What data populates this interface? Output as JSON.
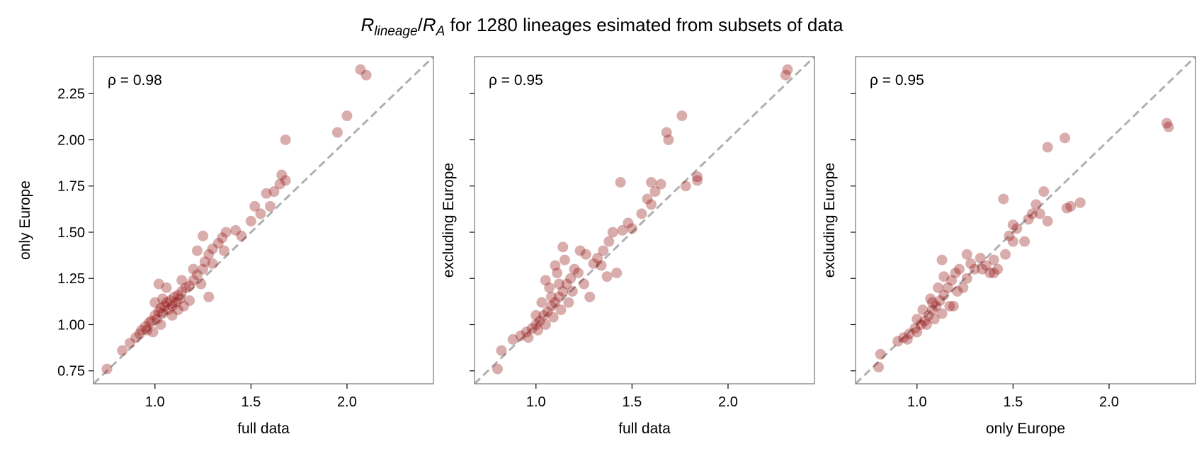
{
  "figure": {
    "title_R1": "R",
    "title_sub1": "lineage",
    "title_slash": "/",
    "title_R2": "R",
    "title_sub2": "A",
    "title_rest": " for 1280 lineages esimated from subsets of data"
  },
  "colors": {
    "point": "#8b0000",
    "diagonal": "#b0b0b0",
    "frame": "#7f7f7f"
  },
  "chart_data": [
    {
      "type": "scatter",
      "xlabel": "full data",
      "ylabel": "only Europe",
      "annotation": "ρ = 0.98",
      "xlim": [
        0.68,
        2.45
      ],
      "ylim": [
        0.68,
        2.45
      ],
      "xticks": [
        1.0,
        1.5,
        2.0
      ],
      "xtick_labels": [
        "1.0",
        "1.5",
        "2.0"
      ],
      "yticks": [
        0.75,
        1.0,
        1.25,
        1.5,
        1.75,
        2.0,
        2.25
      ],
      "ytick_labels": [
        "0.75",
        "1.00",
        "1.25",
        "1.50",
        "1.75",
        "2.00",
        "2.25"
      ],
      "diagonal": true,
      "points": [
        [
          0.75,
          0.76
        ],
        [
          0.83,
          0.86
        ],
        [
          0.87,
          0.9
        ],
        [
          0.9,
          0.93
        ],
        [
          0.93,
          0.97
        ],
        [
          0.95,
          0.99
        ],
        [
          0.97,
          1.01
        ],
        [
          0.98,
          1.02
        ],
        [
          1.0,
          1.05
        ],
        [
          1.02,
          1.07
        ],
        [
          1.03,
          1.09
        ],
        [
          1.05,
          1.1
        ],
        [
          1.06,
          1.12
        ],
        [
          1.08,
          1.13
        ],
        [
          1.1,
          1.15
        ],
        [
          1.12,
          1.16
        ],
        [
          1.14,
          1.18
        ],
        [
          1.16,
          1.2
        ],
        [
          1.18,
          1.21
        ],
        [
          1.2,
          1.24
        ],
        [
          1.22,
          1.27
        ],
        [
          1.25,
          1.3
        ],
        [
          1.26,
          1.34
        ],
        [
          1.28,
          1.38
        ],
        [
          1.3,
          1.41
        ],
        [
          1.33,
          1.44
        ],
        [
          1.35,
          1.47
        ],
        [
          1.37,
          1.5
        ],
        [
          1.25,
          1.48
        ],
        [
          1.28,
          1.15
        ],
        [
          1.42,
          1.51
        ],
        [
          1.5,
          1.56
        ],
        [
          1.55,
          1.6
        ],
        [
          1.58,
          1.71
        ],
        [
          1.6,
          1.64
        ],
        [
          1.62,
          1.72
        ],
        [
          1.65,
          1.76
        ],
        [
          1.66,
          1.81
        ],
        [
          1.68,
          1.78
        ],
        [
          1.68,
          2.0
        ],
        [
          1.95,
          2.04
        ],
        [
          2.0,
          2.13
        ],
        [
          2.07,
          2.38
        ],
        [
          2.1,
          2.35
        ],
        [
          0.92,
          0.95
        ],
        [
          0.96,
          0.97
        ],
        [
          1.01,
          1.03
        ],
        [
          1.04,
          1.06
        ],
        [
          1.07,
          1.08
        ],
        [
          1.09,
          1.1
        ],
        [
          1.11,
          1.12
        ],
        [
          1.13,
          1.14
        ],
        [
          1.04,
          1.14
        ],
        [
          1.0,
          1.12
        ],
        [
          1.06,
          1.2
        ],
        [
          1.02,
          1.22
        ],
        [
          1.09,
          1.05
        ],
        [
          1.12,
          1.08
        ],
        [
          1.15,
          1.1
        ],
        [
          1.18,
          1.13
        ],
        [
          0.99,
          0.96
        ],
        [
          1.03,
          1.0
        ],
        [
          1.2,
          1.3
        ],
        [
          1.14,
          1.24
        ],
        [
          1.24,
          1.22
        ],
        [
          1.3,
          1.33
        ],
        [
          1.36,
          1.4
        ],
        [
          1.45,
          1.48
        ],
        [
          1.52,
          1.64
        ],
        [
          1.22,
          1.4
        ]
      ]
    },
    {
      "type": "scatter",
      "xlabel": "full data",
      "ylabel": "excluding Europe",
      "annotation": "ρ = 0.95",
      "xlim": [
        0.68,
        2.45
      ],
      "ylim": [
        0.68,
        2.45
      ],
      "xticks": [
        1.0,
        1.5,
        2.0
      ],
      "xtick_labels": [
        "1.0",
        "1.5",
        "2.0"
      ],
      "yticks": [
        0.75,
        1.0,
        1.25,
        1.5,
        1.75,
        2.0,
        2.25
      ],
      "ytick_labels": [
        "",
        "",
        "",
        "",
        "",
        "",
        ""
      ],
      "diagonal": true,
      "points": [
        [
          0.8,
          0.76
        ],
        [
          0.82,
          0.86
        ],
        [
          0.88,
          0.92
        ],
        [
          0.92,
          0.94
        ],
        [
          0.95,
          0.96
        ],
        [
          0.98,
          0.98
        ],
        [
          1.0,
          1.0
        ],
        [
          1.02,
          1.02
        ],
        [
          1.04,
          1.05
        ],
        [
          1.06,
          1.07
        ],
        [
          1.08,
          1.1
        ],
        [
          1.1,
          1.12
        ],
        [
          1.12,
          1.15
        ],
        [
          1.14,
          1.18
        ],
        [
          1.16,
          1.22
        ],
        [
          1.18,
          1.25
        ],
        [
          1.2,
          1.3
        ],
        [
          1.15,
          1.35
        ],
        [
          1.1,
          1.32
        ],
        [
          1.22,
          1.28
        ],
        [
          1.25,
          1.22
        ],
        [
          1.28,
          1.15
        ],
        [
          1.3,
          1.33
        ],
        [
          1.32,
          1.36
        ],
        [
          1.35,
          1.4
        ],
        [
          1.38,
          1.45
        ],
        [
          1.4,
          1.5
        ],
        [
          1.45,
          1.51
        ],
        [
          1.42,
          1.28
        ],
        [
          1.48,
          1.55
        ],
        [
          1.44,
          1.77
        ],
        [
          1.5,
          1.52
        ],
        [
          1.55,
          1.6
        ],
        [
          1.58,
          1.68
        ],
        [
          1.6,
          1.65
        ],
        [
          1.6,
          1.77
        ],
        [
          1.65,
          1.76
        ],
        [
          1.62,
          1.72
        ],
        [
          1.68,
          2.04
        ],
        [
          1.69,
          2.0
        ],
        [
          1.78,
          1.75
        ],
        [
          1.76,
          2.13
        ],
        [
          1.84,
          1.78
        ],
        [
          1.84,
          1.8
        ],
        [
          2.3,
          2.35
        ],
        [
          2.31,
          2.38
        ],
        [
          0.96,
          0.93
        ],
        [
          1.01,
          0.97
        ],
        [
          1.05,
          1.0
        ],
        [
          1.09,
          1.04
        ],
        [
          1.13,
          1.08
        ],
        [
          1.17,
          1.12
        ],
        [
          1.03,
          1.12
        ],
        [
          1.07,
          1.2
        ],
        [
          1.11,
          1.28
        ],
        [
          1.05,
          1.24
        ],
        [
          1.19,
          1.18
        ],
        [
          1.23,
          1.4
        ],
        [
          1.26,
          1.38
        ],
        [
          1.14,
          1.42
        ],
        [
          1.34,
          1.32
        ],
        [
          1.37,
          1.26
        ],
        [
          1.0,
          1.05
        ],
        [
          1.08,
          1.15
        ],
        [
          1.12,
          1.22
        ]
      ]
    },
    {
      "type": "scatter",
      "xlabel": "only Europe",
      "ylabel": "excluding Europe",
      "annotation": "ρ = 0.95",
      "xlim": [
        0.68,
        2.45
      ],
      "ylim": [
        0.68,
        2.45
      ],
      "xticks": [
        1.0,
        1.5,
        2.0
      ],
      "xtick_labels": [
        "1.0",
        "1.5",
        "2.0"
      ],
      "yticks": [
        0.75,
        1.0,
        1.25,
        1.5,
        1.75,
        2.0,
        2.25
      ],
      "ytick_labels": [
        "",
        "",
        "",
        "",
        "",
        "",
        ""
      ],
      "diagonal": true,
      "points": [
        [
          0.8,
          0.77
        ],
        [
          0.81,
          0.84
        ],
        [
          0.9,
          0.91
        ],
        [
          0.93,
          0.93
        ],
        [
          0.96,
          0.95
        ],
        [
          0.99,
          0.98
        ],
        [
          1.02,
          1.0
        ],
        [
          1.04,
          1.02
        ],
        [
          1.06,
          1.05
        ],
        [
          1.08,
          1.08
        ],
        [
          1.1,
          1.1
        ],
        [
          1.12,
          1.13
        ],
        [
          1.14,
          1.16
        ],
        [
          1.16,
          1.2
        ],
        [
          1.18,
          1.24
        ],
        [
          1.2,
          1.28
        ],
        [
          1.22,
          1.3
        ],
        [
          1.14,
          1.26
        ],
        [
          1.24,
          1.2
        ],
        [
          1.26,
          1.25
        ],
        [
          1.28,
          1.33
        ],
        [
          1.3,
          1.3
        ],
        [
          1.33,
          1.36
        ],
        [
          1.36,
          1.32
        ],
        [
          1.38,
          1.28
        ],
        [
          1.4,
          1.35
        ],
        [
          1.42,
          1.3
        ],
        [
          1.45,
          1.68
        ],
        [
          1.46,
          1.38
        ],
        [
          1.48,
          1.48
        ],
        [
          1.5,
          1.54
        ],
        [
          1.5,
          1.45
        ],
        [
          1.52,
          1.52
        ],
        [
          1.56,
          1.45
        ],
        [
          1.58,
          1.57
        ],
        [
          1.6,
          1.6
        ],
        [
          1.62,
          1.65
        ],
        [
          1.64,
          1.6
        ],
        [
          1.66,
          1.72
        ],
        [
          1.68,
          1.56
        ],
        [
          1.68,
          1.96
        ],
        [
          1.78,
          1.63
        ],
        [
          1.8,
          1.64
        ],
        [
          1.77,
          2.01
        ],
        [
          1.85,
          1.66
        ],
        [
          2.3,
          2.09
        ],
        [
          2.31,
          2.07
        ],
        [
          0.95,
          0.92
        ],
        [
          1.0,
          0.96
        ],
        [
          1.05,
          1.0
        ],
        [
          1.09,
          1.03
        ],
        [
          1.13,
          1.06
        ],
        [
          1.17,
          1.1
        ],
        [
          1.03,
          1.08
        ],
        [
          1.07,
          1.14
        ],
        [
          1.11,
          1.2
        ],
        [
          1.13,
          1.35
        ],
        [
          1.21,
          1.18
        ],
        [
          1.19,
          1.1
        ],
        [
          1.26,
          1.38
        ],
        [
          1.34,
          1.3
        ],
        [
          1.4,
          1.28
        ],
        [
          1.0,
          1.03
        ],
        [
          1.08,
          1.12
        ]
      ]
    }
  ]
}
